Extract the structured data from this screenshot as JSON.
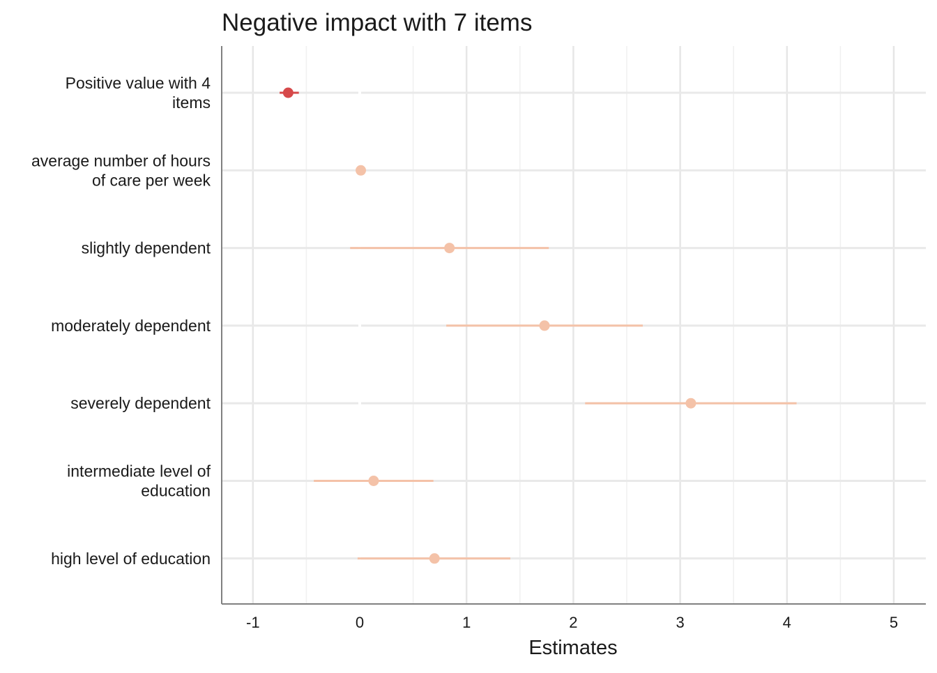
{
  "chart_data": {
    "type": "forest",
    "title": "Negative impact with 7 items",
    "xlabel": "Estimates",
    "xlim": [
      -1.3,
      5.3
    ],
    "xticks": [
      -1,
      0,
      1,
      2,
      3,
      4,
      5
    ],
    "grid": true,
    "rows": [
      {
        "label": [
          "Positive value with 4",
          "items"
        ],
        "estimate": -0.67,
        "low": -0.75,
        "high": -0.57,
        "color": "#d6494a"
      },
      {
        "label": [
          "average number of hours",
          "of care per week"
        ],
        "estimate": 0.01,
        "low": 0.0,
        "high": 0.02,
        "color": "#f4c2a8"
      },
      {
        "label": [
          "slightly dependent"
        ],
        "estimate": 0.84,
        "low": -0.09,
        "high": 1.77,
        "color": "#f4c2a8"
      },
      {
        "label": [
          "moderately dependent"
        ],
        "estimate": 1.73,
        "low": 0.81,
        "high": 2.65,
        "color": "#f4c2a8"
      },
      {
        "label": [
          "severely dependent"
        ],
        "estimate": 3.1,
        "low": 2.11,
        "high": 4.09,
        "color": "#f4c2a8"
      },
      {
        "label": [
          "intermediate level of",
          "education"
        ],
        "estimate": 0.13,
        "low": -0.43,
        "high": 0.69,
        "color": "#f4c2a8"
      },
      {
        "label": [
          "high level of education"
        ],
        "estimate": 0.7,
        "low": -0.02,
        "high": 1.41,
        "color": "#f4c2a8"
      }
    ]
  }
}
